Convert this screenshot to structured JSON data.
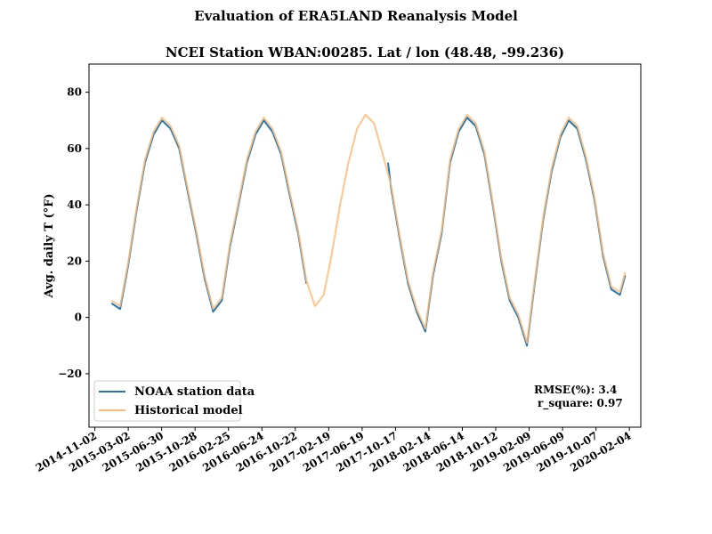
{
  "chart_data": {
    "type": "line",
    "suptitle": "Evaluation of ERA5LAND Reanalysis Model",
    "title": "NCEI Station WBAN:00285. Lat / lon (48.48, -99.236)",
    "xlabel": "",
    "ylabel": "Avg. daily T (°F)",
    "xlim": [
      "2014-10-12",
      "2020-03-16"
    ],
    "ylim": [
      -39,
      90
    ],
    "x_ticks": [
      "2014-11-02",
      "2015-03-02",
      "2015-06-30",
      "2015-10-28",
      "2016-02-25",
      "2016-06-24",
      "2016-10-22",
      "2017-02-19",
      "2017-06-19",
      "2017-10-17",
      "2018-02-14",
      "2018-06-14",
      "2018-10-12",
      "2019-02-09",
      "2019-06-09",
      "2019-10-07",
      "2020-02-04"
    ],
    "y_ticks": [
      -20,
      0,
      20,
      40,
      60,
      80
    ],
    "grid": false,
    "legend_position": "lower-left",
    "series": [
      {
        "name": "NOAA station data",
        "color": "#1f77b4",
        "segments": [
          {
            "x": [
              "2015-01-01",
              "2015-02-01",
              "2015-03-01",
              "2015-04-01",
              "2015-05-01",
              "2015-06-01",
              "2015-07-01",
              "2015-08-01",
              "2015-09-01",
              "2015-10-01",
              "2015-11-01",
              "2015-12-01",
              "2016-01-01",
              "2016-02-01",
              "2016-03-01",
              "2016-04-01",
              "2016-05-01",
              "2016-06-01",
              "2016-07-01",
              "2016-08-01",
              "2016-09-01",
              "2016-10-01",
              "2016-11-01",
              "2016-12-01"
            ],
            "y": [
              5,
              3,
              18,
              38,
              55,
              65,
              70,
              67,
              60,
              45,
              30,
              14,
              2,
              6,
              25,
              40,
              55,
              65,
              70,
              66,
              58,
              44,
              30,
              12
            ]
          },
          {
            "x": [
              "2017-09-20",
              "2017-10-01",
              "2017-11-01",
              "2017-12-01",
              "2018-01-01",
              "2018-02-01",
              "2018-03-01",
              "2018-04-01",
              "2018-05-01",
              "2018-06-01",
              "2018-07-01",
              "2018-08-01",
              "2018-09-01",
              "2018-10-01",
              "2018-11-01",
              "2018-12-01",
              "2019-01-01",
              "2019-02-01",
              "2019-03-01",
              "2019-04-01",
              "2019-05-01",
              "2019-06-01",
              "2019-07-01",
              "2019-08-01",
              "2019-09-01",
              "2019-10-01",
              "2019-11-01",
              "2019-12-01",
              "2020-01-01",
              "2020-01-20"
            ],
            "y": [
              55,
              46,
              28,
              12,
              2,
              -5,
              15,
              30,
              55,
              66,
              71,
              68,
              58,
              40,
              20,
              6,
              0,
              -10,
              12,
              35,
              52,
              64,
              70,
              67,
              56,
              42,
              22,
              10,
              8,
              15
            ]
          }
        ]
      },
      {
        "name": "Historical model",
        "color": "#ffbb78",
        "segments": [
          {
            "x": [
              "2015-01-01",
              "2015-02-01",
              "2015-03-01",
              "2015-04-01",
              "2015-05-01",
              "2015-06-01",
              "2015-07-01",
              "2015-08-01",
              "2015-09-01",
              "2015-10-01",
              "2015-11-01",
              "2015-12-01",
              "2016-01-01",
              "2016-02-01",
              "2016-03-01",
              "2016-04-01",
              "2016-05-01",
              "2016-06-01",
              "2016-07-01",
              "2016-08-01",
              "2016-09-01",
              "2016-10-01",
              "2016-11-01",
              "2016-12-01",
              "2017-01-01",
              "2017-02-01",
              "2017-03-01",
              "2017-04-01",
              "2017-05-01",
              "2017-06-01",
              "2017-07-01",
              "2017-08-01",
              "2017-09-01",
              "2017-10-01",
              "2017-11-01",
              "2017-12-01",
              "2018-01-01",
              "2018-02-01",
              "2018-03-01",
              "2018-04-01",
              "2018-05-01",
              "2018-06-01",
              "2018-07-01",
              "2018-08-01",
              "2018-09-01",
              "2018-10-01",
              "2018-11-01",
              "2018-12-01",
              "2019-01-01",
              "2019-02-01",
              "2019-03-01",
              "2019-04-01",
              "2019-05-01",
              "2019-06-01",
              "2019-07-01",
              "2019-08-01",
              "2019-09-01",
              "2019-10-01",
              "2019-11-01",
              "2019-12-01",
              "2020-01-01",
              "2020-01-20"
            ],
            "y": [
              6,
              4,
              19,
              39,
              56,
              66,
              71,
              68,
              61,
              46,
              31,
              15,
              3,
              7,
              26,
              41,
              56,
              66,
              71,
              67,
              59,
              45,
              31,
              13,
              4,
              8,
              22,
              40,
              55,
              67,
              72,
              69,
              58,
              47,
              29,
              13,
              3,
              -4,
              16,
              31,
              56,
              67,
              72,
              69,
              59,
              41,
              21,
              7,
              1,
              -9,
              13,
              36,
              53,
              65,
              71,
              68,
              57,
              43,
              23,
              11,
              9,
              16
            ]
          }
        ]
      }
    ],
    "annotations": [
      "RMSE(%): 3.4",
      "r_square: 0.97"
    ]
  }
}
